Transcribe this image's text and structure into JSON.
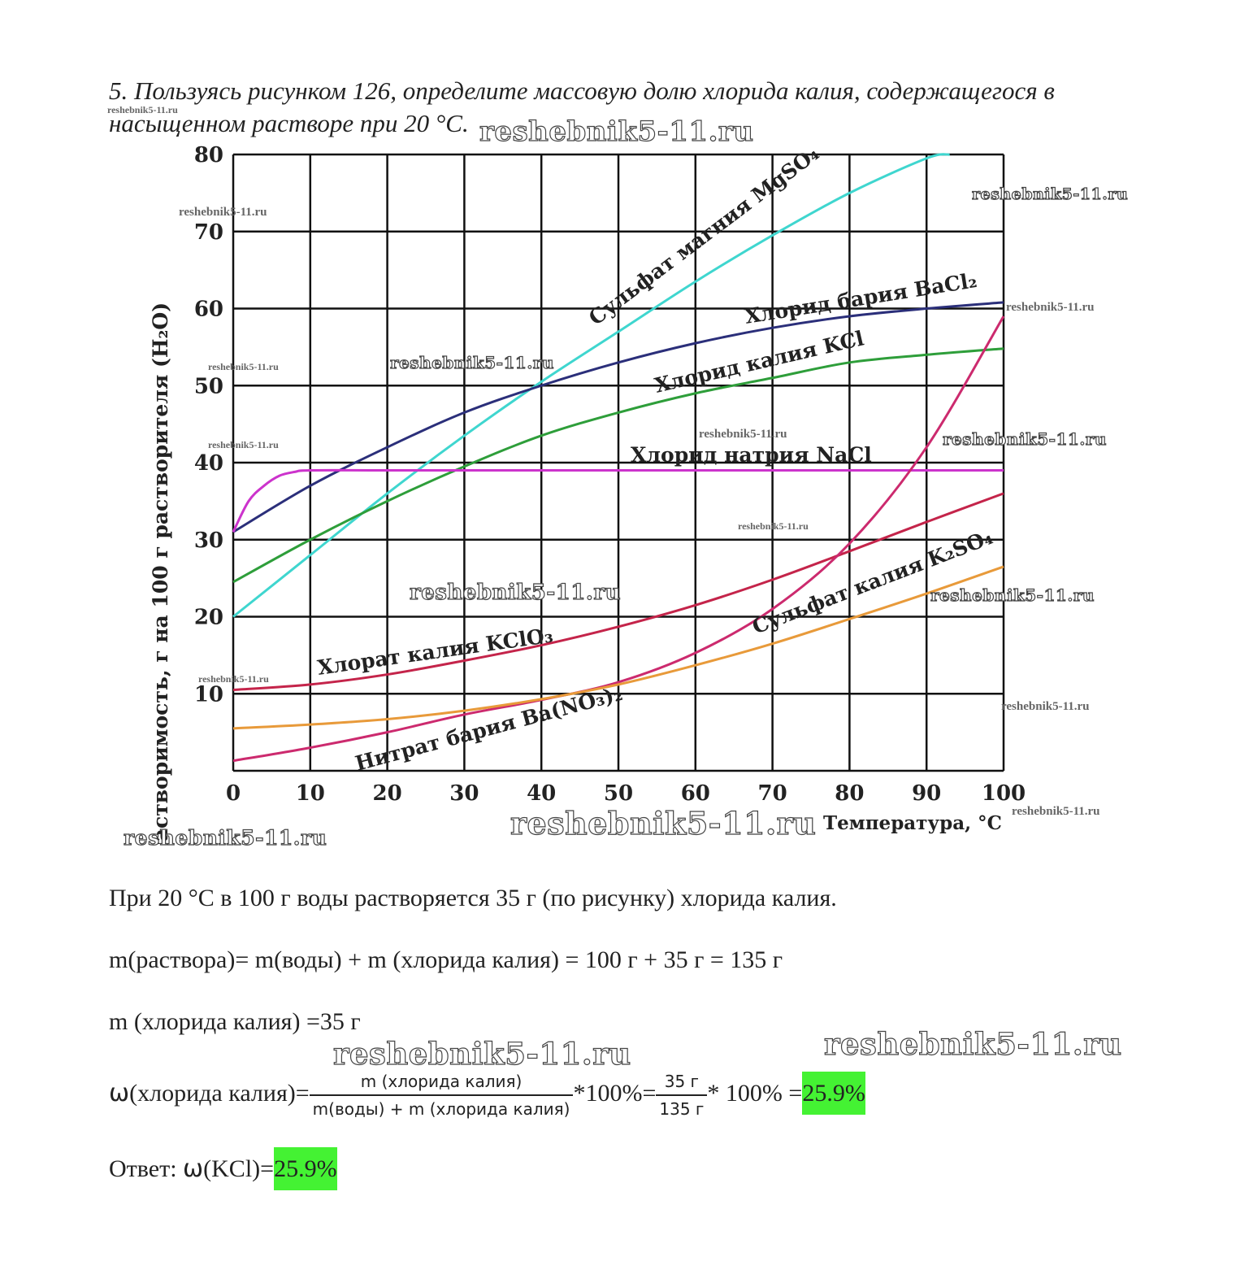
{
  "question": {
    "text": "5. Пользуясь рисунком 126, определите массовую долю хлорида калия, содержащегося в насыщенном растворе при 20 °С."
  },
  "watermarks": {
    "text": "reshebnik5-11.ru"
  },
  "chart_data": {
    "type": "line",
    "ylabel": "Растворимость, г на 100 г растворителя (H₂O)",
    "xlabel": "Температура, °С",
    "xlim": [
      0,
      100
    ],
    "ylim": [
      0,
      80
    ],
    "xticks": [
      0,
      10,
      20,
      30,
      40,
      50,
      60,
      70,
      80,
      90,
      100
    ],
    "yticks": [
      10,
      20,
      30,
      40,
      50,
      60,
      70,
      80
    ],
    "grid": true,
    "series": [
      {
        "name": "Сульфат магния MgSO₄",
        "color": "#3fd6cf",
        "x": [
          0,
          10,
          20,
          30,
          40,
          50,
          60,
          70,
          80,
          90,
          93
        ],
        "y": [
          20,
          28,
          36,
          43.5,
          50.5,
          57,
          63.5,
          69.5,
          75,
          79.5,
          80
        ]
      },
      {
        "name": "Хлорид бария BaCl₂",
        "color": "#2b2f7a",
        "x": [
          0,
          10,
          20,
          30,
          40,
          50,
          60,
          70,
          80,
          90,
          100
        ],
        "y": [
          31,
          37,
          42,
          46.5,
          50,
          53,
          55.5,
          57.5,
          59,
          60,
          60.8
        ]
      },
      {
        "name": "Хлорид калия KCl",
        "color": "#2e9e3a",
        "x": [
          0,
          10,
          20,
          30,
          40,
          50,
          60,
          70,
          80,
          90,
          100
        ],
        "y": [
          24.5,
          30,
          35,
          39.5,
          43.5,
          46.5,
          49,
          51,
          53,
          54,
          54.8
        ]
      },
      {
        "name": "Хлорид натрия NaCl",
        "color": "#cc33cc",
        "x": [
          0,
          2,
          4,
          6,
          8,
          10,
          20,
          40,
          60,
          80,
          100
        ],
        "y": [
          31,
          35,
          37,
          38.3,
          38.8,
          39,
          39,
          39,
          39,
          39,
          39
        ]
      },
      {
        "name": "Хлорат калия KClO₃",
        "color": "#c4244a",
        "x": [
          0,
          10,
          20,
          30,
          40,
          50,
          60,
          70,
          80,
          90,
          100
        ],
        "y": [
          10.5,
          11.2,
          12.5,
          14.3,
          16.3,
          18.7,
          21.5,
          24.8,
          28.5,
          32.3,
          36
        ]
      },
      {
        "name": "Нитрат бария Ba(NO₃)₂",
        "color": "#cc2a6e",
        "x": [
          0,
          10,
          20,
          30,
          40,
          50,
          60,
          70,
          80,
          90,
          100
        ],
        "y": [
          1.3,
          3,
          5,
          7.3,
          9.2,
          11.5,
          15.3,
          21,
          29.5,
          42,
          59
        ]
      },
      {
        "name": "Сульфат калия K₂SO₄",
        "color": "#e89a3a",
        "x": [
          0,
          10,
          20,
          30,
          40,
          50,
          60,
          70,
          80,
          90,
          100
        ],
        "y": [
          5.5,
          6,
          6.7,
          7.8,
          9.3,
          11.2,
          13.7,
          16.5,
          19.7,
          23,
          26.5
        ]
      }
    ]
  },
  "solution": {
    "line1": "При 20 °С в 100 г воды растворяется 35 г (по рисунку) хлорида калия.",
    "line2": "m(раствора)= m(воды) + m (хлорида калия) = 100 г + 35 г = 135 г",
    "line3": "m (хлорида калия) =35 г",
    "omega_symbol": "ω",
    "omega_lhs": "(хлорида калия)=",
    "frac1_num": "m (хлорида калия)",
    "frac1_den": "m(воды) + m (хлорида калия)",
    "times_100": "*100%=",
    "frac2_num": "35 г",
    "frac2_den": "135 г",
    "times_100_b": "* 100% =",
    "result": "25.9%",
    "answer_prefix": "Ответ: ",
    "answer_formula": "(KCl)=",
    "answer_value": "25.9%"
  }
}
